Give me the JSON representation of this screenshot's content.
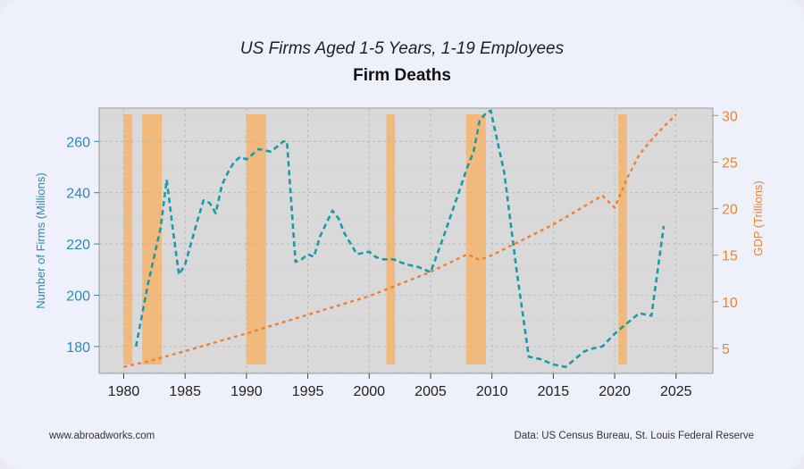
{
  "colors": {
    "firms": "#1b9aaa",
    "gdp": "#f07f2e",
    "recession": "#f5b46b",
    "left_axis": "#2a8ab8",
    "right_axis": "#e8862f",
    "plot_bg": "#d9d9d9"
  },
  "footer": {
    "website": "www.abroadworks.com",
    "source": "Data: US Census Bureau, St. Louis Federal Reserve"
  },
  "chart_data": {
    "type": "line",
    "title": "US Firms Aged 1-5 Years, 1-19 Employees",
    "subtitle": "Firm Deaths",
    "xlabel": "",
    "ylabel_left": "Number of Firms (Millions)",
    "ylabel_right": "GDP (Trillions)",
    "xlim": [
      1978,
      2028
    ],
    "ylim_left": [
      169.5,
      273
    ],
    "ylim_right": [
      2.3,
      30.8
    ],
    "xticks": [
      1980,
      1985,
      1990,
      1995,
      2000,
      2005,
      2010,
      2015,
      2020,
      2025
    ],
    "yticks_left": [
      180,
      200,
      220,
      240,
      260
    ],
    "yticks_right": [
      5,
      10,
      15,
      20,
      25,
      30
    ],
    "grid": true,
    "recessions": [
      [
        1980.0,
        1980.7
      ],
      [
        1981.5,
        1983.1
      ],
      [
        1990.0,
        1991.6
      ],
      [
        2001.4,
        2002.1
      ],
      [
        2007.9,
        2009.5
      ],
      [
        2020.3,
        2021.0
      ]
    ],
    "series": [
      {
        "axis": "left",
        "style": "dashed",
        "x": [
          1981,
          1982,
          1983,
          1983.5,
          1984,
          1984.5,
          1985,
          1986,
          1986.5,
          1987,
          1987.5,
          1988,
          1988.5,
          1989,
          1989.5,
          1990,
          1991,
          1992,
          1993,
          1993.3,
          1994,
          1994.5,
          1995,
          1995.5,
          1996,
          1997,
          1997.5,
          1998,
          1999,
          2000,
          2000.5,
          2001,
          2002,
          2002.5,
          2003,
          2004,
          2005,
          2006,
          2007,
          2008,
          2008.5,
          2009,
          2009.5,
          2009.9,
          2011,
          2012,
          2013,
          2014,
          2015,
          2016,
          2017,
          2017.5,
          2018,
          2019,
          2020,
          2021,
          2022,
          2023,
          2024
        ],
        "values": [
          180,
          205,
          226,
          245,
          226,
          208,
          212,
          229,
          237,
          236,
          232,
          243,
          248,
          252,
          254,
          253,
          257,
          256,
          260,
          260,
          213,
          214,
          216,
          215,
          223,
          233,
          230,
          224,
          216,
          217,
          215,
          214,
          214,
          213,
          212,
          211,
          209,
          222,
          236,
          250,
          256,
          268,
          271,
          272,
          248,
          210,
          176,
          175,
          173,
          172,
          176,
          178,
          179,
          180,
          185,
          189,
          193,
          192,
          227
        ]
      },
      {
        "axis": "right",
        "style": "dotted",
        "x": [
          1980,
          1982,
          1985,
          1990,
          1995,
          2000,
          2005,
          2008,
          2009,
          2010,
          2015,
          2019,
          2020,
          2021,
          2022,
          2023,
          2024,
          2025
        ],
        "values": [
          3.0,
          3.6,
          4.7,
          6.6,
          8.6,
          10.6,
          13.2,
          15.1,
          14.5,
          15.0,
          18.3,
          21.4,
          20.1,
          23.2,
          25.8,
          27.4,
          28.8,
          30.1
        ]
      }
    ]
  }
}
